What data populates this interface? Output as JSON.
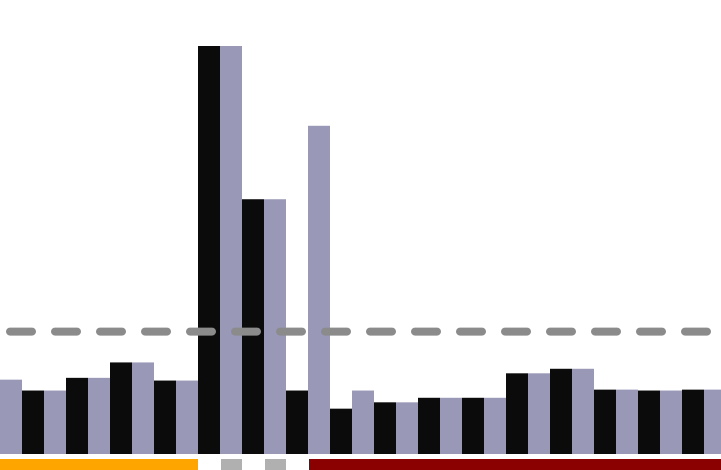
{
  "colors": {
    "background": "#ffffff",
    "series_a": "#0b0b0b",
    "series_b": "#9999b7",
    "reference_line": "#8b8b8b"
  },
  "chart_data": {
    "type": "bar",
    "title": "",
    "xlabel": "",
    "ylabel": "",
    "ylim": [
      0,
      45
    ],
    "grid": false,
    "legend": "none",
    "categories": [
      "",
      "",
      "",
      "",
      "",
      "",
      "",
      "",
      "",
      "",
      "",
      "",
      "",
      "",
      "",
      "",
      ""
    ],
    "series": [
      {
        "color": "#0b0b0b",
        "values": [
          null,
          7.0,
          8.4,
          10.1,
          8.1,
          45.0,
          28.1,
          7.0,
          5.0,
          5.7,
          6.2,
          6.2,
          8.9,
          9.4,
          7.1,
          7.0,
          7.1
        ]
      },
      {
        "color": "#9999b7",
        "values": [
          8.2,
          7.0,
          8.4,
          10.1,
          8.1,
          45.0,
          28.1,
          36.2,
          7.0,
          5.7,
          6.2,
          6.2,
          8.9,
          9.4,
          7.1,
          7.0,
          7.1
        ]
      }
    ],
    "reference_line": {
      "value": 13.5,
      "style": "dashed",
      "color": "#8b8b8b"
    },
    "category_groups": [
      {
        "color": "#ffa500",
        "start": 0,
        "end": 4
      },
      {
        "color": "#b0b0b0",
        "start": 5,
        "end": 5
      },
      {
        "color": "#b0b0b0",
        "start": 6,
        "end": 6
      },
      {
        "color": "#8b0000",
        "start": 7,
        "end": 16
      }
    ]
  }
}
